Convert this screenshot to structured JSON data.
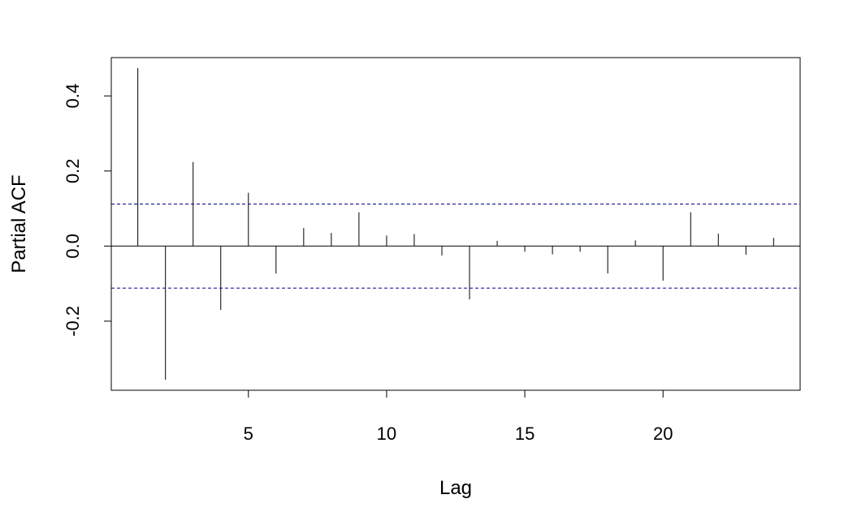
{
  "chart_data": {
    "type": "bar",
    "subtype": "pacf-spikes",
    "title": "",
    "xlabel": "Lag",
    "ylabel": "Partial ACF",
    "x": [
      1,
      2,
      3,
      4,
      5,
      6,
      7,
      8,
      9,
      10,
      11,
      12,
      13,
      14,
      15,
      16,
      17,
      18,
      19,
      20,
      21,
      22,
      23,
      24
    ],
    "values": [
      0.474,
      -0.356,
      0.224,
      -0.17,
      0.142,
      -0.073,
      0.048,
      0.035,
      0.09,
      0.028,
      0.032,
      -0.025,
      -0.142,
      0.014,
      -0.015,
      -0.022,
      -0.015,
      -0.073,
      0.015,
      -0.092,
      0.09,
      0.033,
      -0.023,
      0.022
    ],
    "confidence_bound": 0.112,
    "xlim": [
      0.04,
      24.96
    ],
    "ylim": [
      -0.384,
      0.502
    ],
    "xticks": [
      {
        "value": 5,
        "label": "5"
      },
      {
        "value": 10,
        "label": "10"
      },
      {
        "value": 15,
        "label": "15"
      },
      {
        "value": 20,
        "label": "20"
      }
    ],
    "yticks": [
      {
        "value": -0.2,
        "label": "-0.2"
      },
      {
        "value": 0.0,
        "label": "0.0"
      },
      {
        "value": 0.2,
        "label": "0.2"
      },
      {
        "value": 0.4,
        "label": "0.4"
      }
    ],
    "grid": false,
    "colors": {
      "spike": "#000000",
      "bound": "#00008B",
      "axis": "#000000"
    }
  }
}
